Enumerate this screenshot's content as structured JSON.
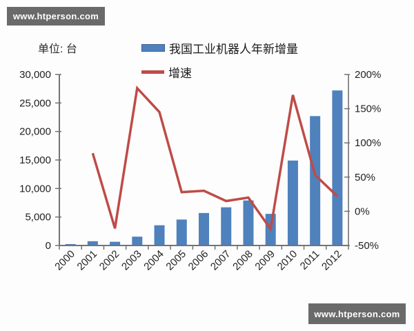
{
  "watermarks": {
    "top": "www.htperson.com",
    "bottom": "www.htperson.com"
  },
  "unit_label": "单位: 台",
  "legend": [
    {
      "label": "我国工业机器人年新增量",
      "swatch": "bar",
      "color": "#4f81bd"
    },
    {
      "label": "增速",
      "swatch": "line",
      "color": "#bf4b47"
    }
  ],
  "chart_data": {
    "type": "bar",
    "title": "",
    "categories": [
      "2000",
      "2001",
      "2002",
      "2003",
      "2004",
      "2005",
      "2006",
      "2007",
      "2008",
      "2009",
      "2010",
      "2011",
      "2012"
    ],
    "series": [
      {
        "name": "我国工业机器人年新增量",
        "type": "bar",
        "axis": "left",
        "color": "#4f81bd",
        "values": [
          250,
          750,
          650,
          1550,
          3550,
          4550,
          5700,
          6700,
          7900,
          5550,
          14900,
          22700,
          27200
        ]
      },
      {
        "name": "增速",
        "type": "line",
        "axis": "right",
        "color": "#bf4b47",
        "values": [
          null,
          85,
          -25,
          180,
          145,
          28,
          30,
          15,
          20,
          -26,
          170,
          53,
          22
        ]
      }
    ],
    "left_axis": {
      "min": 0,
      "max": 30000,
      "step": 5000,
      "tick_labels": [
        "0",
        "5,000",
        "10,000",
        "15,000",
        "20,000",
        "25,000",
        "30,000"
      ],
      "unit": "台"
    },
    "right_axis": {
      "min": -50,
      "max": 200,
      "step": 50,
      "tick_labels": [
        "-50%",
        "0%",
        "50%",
        "100%",
        "150%",
        "200%"
      ]
    },
    "grid": false,
    "legend_position": "top"
  }
}
